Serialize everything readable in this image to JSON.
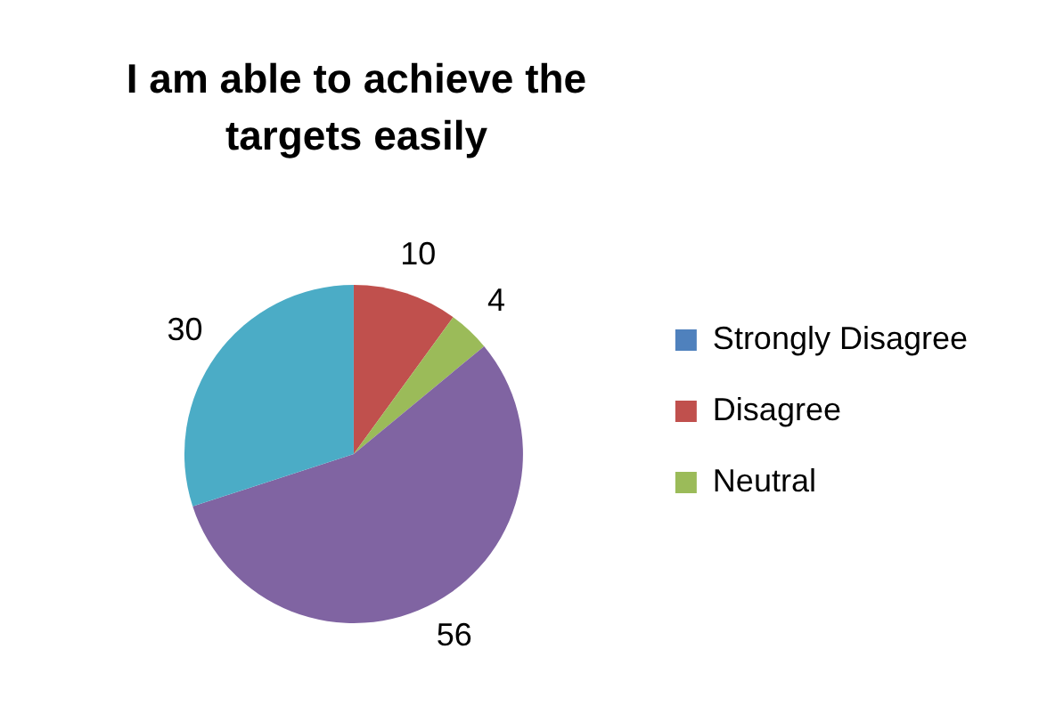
{
  "chart_data": {
    "type": "pie",
    "title": "I am able to achieve the targets easily",
    "categories": [
      "Strongly Disagree",
      "Disagree",
      "Neutral",
      null,
      null
    ],
    "values": [
      0,
      10,
      4,
      56,
      30
    ],
    "colors": [
      "#4f81bd",
      "#c0504d",
      "#9bbb59",
      "#8064a2",
      "#4bacc6"
    ],
    "value_labels": [
      null,
      "10",
      "4",
      "56",
      "30"
    ],
    "legend": "right"
  }
}
